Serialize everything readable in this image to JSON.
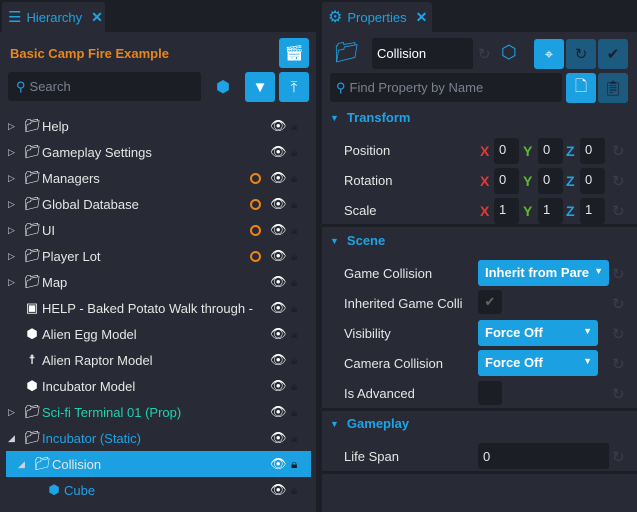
{
  "hierarchy": {
    "tab_label": "Hierarchy",
    "scene_title": "Basic Camp Fire Example",
    "search_placeholder": "Search",
    "items": [
      {
        "label": "Help",
        "icon": "folder-icon",
        "expandable": true,
        "modified": false
      },
      {
        "label": "Gameplay Settings",
        "icon": "folder-icon",
        "expandable": true,
        "modified": false
      },
      {
        "label": "Managers",
        "icon": "folder-icon",
        "expandable": true,
        "modified": true
      },
      {
        "label": "Global Database",
        "icon": "folder-icon",
        "expandable": true,
        "modified": true
      },
      {
        "label": "UI",
        "icon": "folder-icon",
        "expandable": true,
        "modified": true
      },
      {
        "label": "Player Lot",
        "icon": "folder-group-icon",
        "expandable": true,
        "modified": true
      },
      {
        "label": "Map",
        "icon": "folder-icon",
        "expandable": true,
        "modified": false
      },
      {
        "label": "HELP - Baked Potato Walk through -",
        "icon": "script-icon",
        "expandable": false,
        "modified": false
      },
      {
        "label": "Alien Egg Model",
        "icon": "cube-icon",
        "expandable": false,
        "modified": false
      },
      {
        "label": "Alien Raptor Model",
        "icon": "figure-icon",
        "expandable": false,
        "modified": false
      },
      {
        "label": "Incubator Model",
        "icon": "cube-icon",
        "expandable": false,
        "modified": false
      },
      {
        "label": "Sci-fi Terminal 01 (Prop)",
        "icon": "folder-group-icon",
        "expandable": true,
        "modified": false,
        "color": "#1fd1b5"
      },
      {
        "label": "Incubator (Static)",
        "icon": "folder-group-icon",
        "expandable": true,
        "expanded": true,
        "modified": false,
        "color": "#1ea3e6"
      },
      {
        "label": "Collision",
        "icon": "folder-group-icon",
        "expandable": true,
        "expanded": true,
        "selected": true,
        "modified": false
      },
      {
        "label": "Cube",
        "icon": "cube-icon",
        "expandable": false,
        "modified": false,
        "color": "#1ea3e6"
      }
    ]
  },
  "properties": {
    "tab_label": "Properties",
    "name_value": "Collision",
    "search_placeholder": "Find Property by Name",
    "sections": {
      "transform": "Transform",
      "scene": "Scene",
      "gameplay": "Gameplay"
    },
    "transform": {
      "position": {
        "label": "Position",
        "x": "0",
        "y": "0",
        "z": "0"
      },
      "rotation": {
        "label": "Rotation",
        "x": "0",
        "y": "0",
        "z": "0"
      },
      "scale": {
        "label": "Scale",
        "x": "1",
        "y": "1",
        "z": "1"
      }
    },
    "axes": {
      "x": "X",
      "y": "Y",
      "z": "Z"
    },
    "scene": {
      "game_collision": {
        "label": "Game Collision",
        "value": "Inherit from Parent"
      },
      "inherited_game_collision": {
        "label": "Inherited Game Colli",
        "checked": true
      },
      "visibility": {
        "label": "Visibility",
        "value": "Force Off"
      },
      "camera_collision": {
        "label": "Camera Collision",
        "value": "Force Off"
      },
      "is_advanced": {
        "label": "Is Advanced",
        "checked": false
      }
    },
    "gameplay": {
      "life_span": {
        "label": "Life Span",
        "value": "0"
      }
    }
  },
  "colors": {
    "accent": "#1ba1e2",
    "modified": "#e9861c",
    "title": "#e9861c",
    "x": "#e53935",
    "y": "#5dbb2b",
    "z": "#1ea3e6"
  }
}
